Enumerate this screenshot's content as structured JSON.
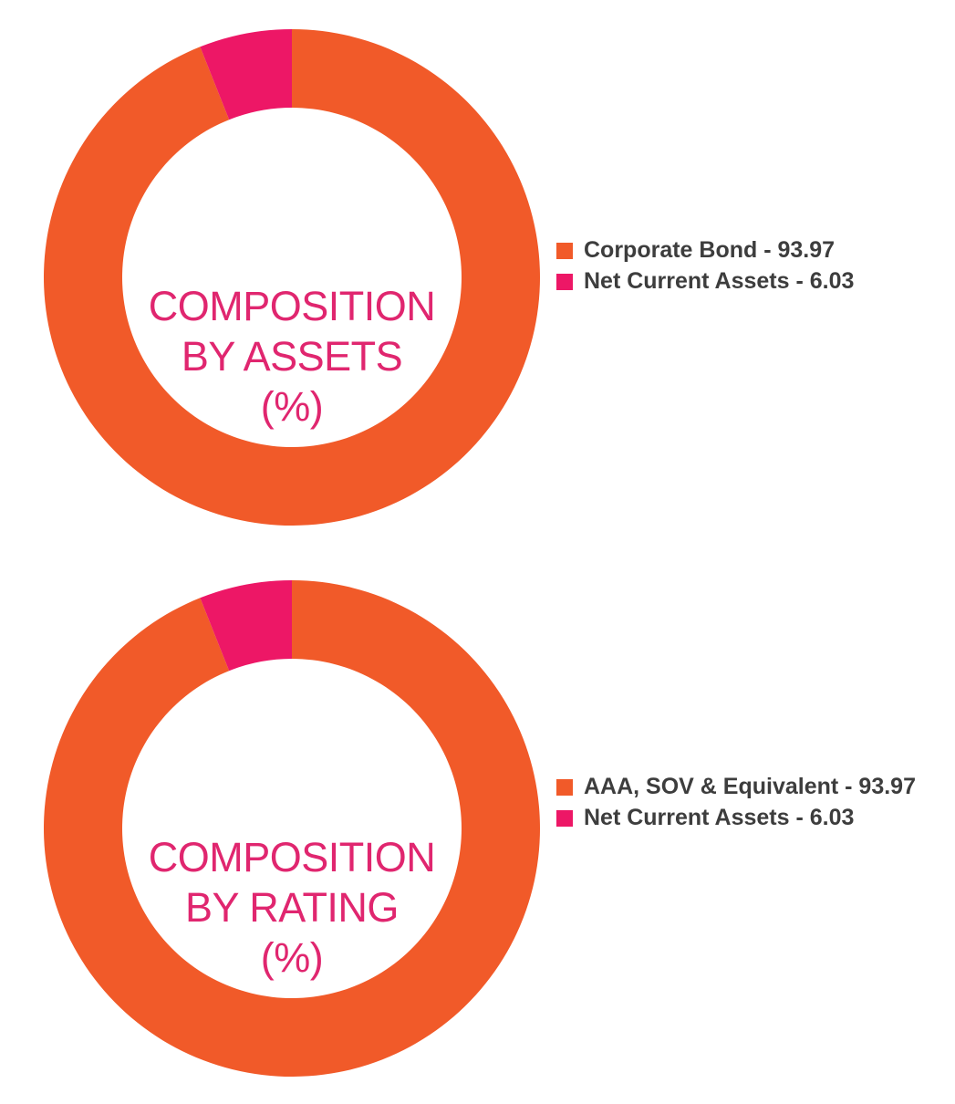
{
  "chart_data": [
    {
      "type": "pie",
      "title": "COMPOSITION BY ASSETS (%)",
      "title_lines": [
        "COMPOSITION",
        "BY ASSETS",
        "(%)"
      ],
      "categories": [
        "Corporate Bond",
        "Net Current Assets"
      ],
      "values": [
        93.97,
        6.03
      ],
      "colors": [
        "#f15a29",
        "#ed1766"
      ],
      "legend_labels": [
        "Corporate Bond - 93.97",
        "Net Current Assets - 6.03"
      ],
      "legend_position": "right",
      "style": "donut"
    },
    {
      "type": "pie",
      "title": "COMPOSITION BY RATING (%)",
      "title_lines": [
        "COMPOSITION",
        "BY RATING",
        "(%)"
      ],
      "categories": [
        "AAA, SOV & Equivalent",
        "Net Current Assets"
      ],
      "values": [
        93.97,
        6.03
      ],
      "colors": [
        "#f15a29",
        "#ed1766"
      ],
      "legend_labels": [
        "AAA, SOV & Equivalent - 93.97",
        "Net Current Assets - 6.03"
      ],
      "legend_position": "right",
      "style": "donut"
    }
  ]
}
